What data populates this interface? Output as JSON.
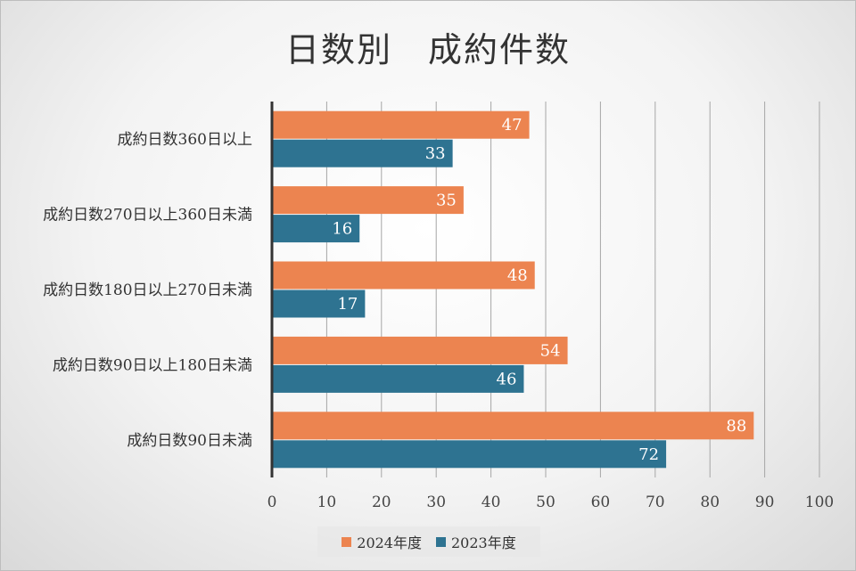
{
  "chart_data": {
    "type": "bar",
    "orientation": "horizontal",
    "title": "日数別　成約件数",
    "categories": [
      "成約日数360日以上",
      "成約日数270日以上360日未満",
      "成約日数180日以上270日未満",
      "成約日数90日以上180日未満",
      "成約日数90日未満"
    ],
    "series": [
      {
        "name": "2024年度",
        "color": "#ec8450",
        "values": [
          47,
          35,
          48,
          54,
          88
        ]
      },
      {
        "name": "2023年度",
        "color": "#2e7391",
        "values": [
          33,
          16,
          17,
          46,
          72
        ]
      }
    ],
    "xlim": [
      0,
      100
    ],
    "xticks": [
      0,
      10,
      20,
      30,
      40,
      50,
      60,
      70,
      80,
      90,
      100
    ],
    "grid": true,
    "legend": "bottom",
    "data_labels": true
  }
}
